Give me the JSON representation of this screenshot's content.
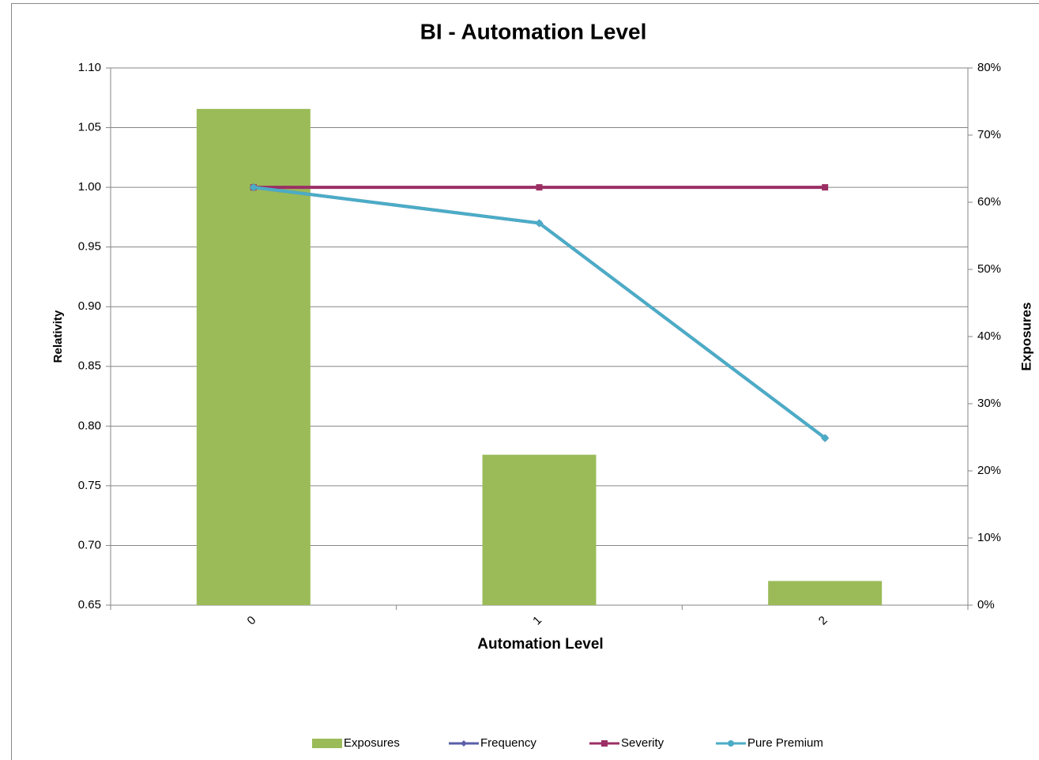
{
  "chart_data": {
    "type": "bar_line",
    "title": "BI - Automation Level",
    "x_label": "Automation Level",
    "y_label": "Relativity",
    "y2_label": "Exposures",
    "categories": [
      "0",
      "1",
      "2"
    ],
    "series": [
      {
        "name": "Exposures",
        "color": "#9bbb59",
        "kind": "bar",
        "axis": "y2",
        "values": [
          73.9,
          22.4,
          3.6
        ]
      },
      {
        "name": "Frequency",
        "color": "#5a5fa8",
        "kind": "line",
        "marker": "diamond",
        "values": [
          1.0,
          0.97,
          0.79
        ]
      },
      {
        "name": "Severity",
        "color": "#9b2f64",
        "kind": "line",
        "marker": "square",
        "values": [
          1.0,
          1.0,
          1.0
        ]
      },
      {
        "name": "Pure Premium",
        "color": "#4bacc6",
        "kind": "line",
        "marker": "circle",
        "values": [
          1.0,
          0.97,
          0.79
        ]
      }
    ],
    "ylim": [
      0.65,
      1.1
    ],
    "yticks": [
      0.65,
      {
        "value": 0.7,
        "label": "0.70"
      },
      0.75,
      {
        "value": 0.8,
        "label": "0.80"
      },
      0.85,
      {
        "value": 0.9,
        "label": "0.90"
      },
      0.95,
      {
        "value": 1.0,
        "label": "1.00"
      },
      1.05,
      {
        "value": 1.1,
        "label": "1.10"
      }
    ],
    "y2lim": [
      0,
      80
    ],
    "y2ticks": [
      {
        "value": 0,
        "label": "0%"
      },
      {
        "value": 10,
        "label": "10%"
      },
      {
        "value": 20,
        "label": "20%"
      },
      {
        "value": 30,
        "label": "30%"
      },
      {
        "value": 40,
        "label": "40%"
      },
      {
        "value": 50,
        "label": "50%"
      },
      {
        "value": 60,
        "label": "60%"
      },
      {
        "value": 70,
        "label": "70%"
      },
      {
        "value": 80,
        "label": "80%"
      }
    ],
    "grid": true,
    "legend": "bottom"
  }
}
